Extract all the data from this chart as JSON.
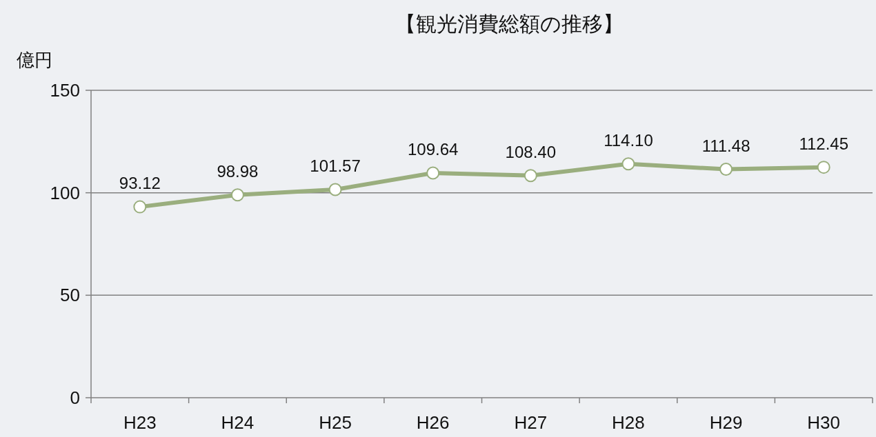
{
  "chart_data": {
    "type": "line",
    "title": "【観光消費総額の推移】",
    "ylabel": "億円",
    "categories": [
      "H23",
      "H24",
      "H25",
      "H26",
      "H27",
      "H28",
      "H29",
      "H30"
    ],
    "series": [
      {
        "color": "#9aae7e",
        "values": [
          93.12,
          98.98,
          101.57,
          109.64,
          108.4,
          114.1,
          111.48,
          112.45
        ],
        "value_labels": [
          "93.12",
          "98.98",
          "101.57",
          "109.64",
          "108.40",
          "114.10",
          "111.48",
          "112.45"
        ]
      }
    ],
    "ylim": [
      0,
      150
    ],
    "yticks": [
      0,
      50,
      100,
      150
    ],
    "grid": "y",
    "marker": "circle",
    "line_style": "solid"
  }
}
